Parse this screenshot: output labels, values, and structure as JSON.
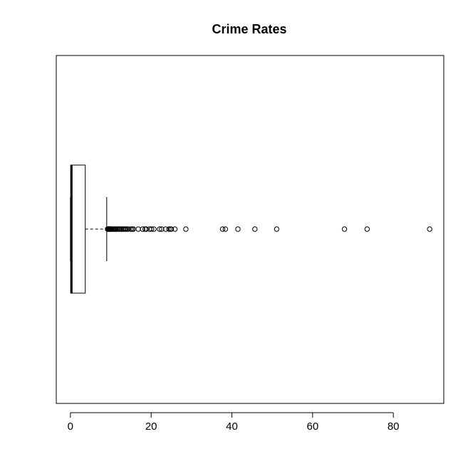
{
  "chart_data": {
    "type": "boxplot",
    "orientation": "horizontal",
    "title": "Crime Rates",
    "xlabel": "",
    "ylabel": "",
    "xlim": [
      -3.5,
      92.5
    ],
    "x_ticks": [
      0,
      20,
      40,
      60,
      80
    ],
    "grid": false,
    "box": {
      "min": 0.006,
      "q1": 0.08,
      "median": 0.26,
      "q3": 3.68,
      "whisker_high": 9.0
    },
    "outliers": [
      9.2,
      9.3,
      9.4,
      9.5,
      9.6,
      9.7,
      9.8,
      9.9,
      10.0,
      10.1,
      10.3,
      10.5,
      10.7,
      10.9,
      11.1,
      11.3,
      11.6,
      11.9,
      12.1,
      12.3,
      12.6,
      12.9,
      13.2,
      13.5,
      13.7,
      14.0,
      14.3,
      15.0,
      15.3,
      15.6,
      16.8,
      17.9,
      18.5,
      18.8,
      19.6,
      20.1,
      20.7,
      22.1,
      22.6,
      23.6,
      24.4,
      24.8,
      25.0,
      25.9,
      28.6,
      37.7,
      38.4,
      41.5,
      45.7,
      51.1,
      67.9,
      73.5,
      89.0
    ]
  }
}
